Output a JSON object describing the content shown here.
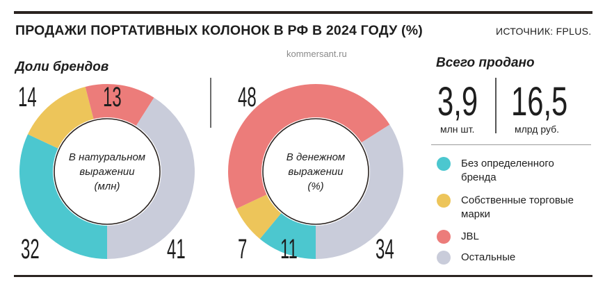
{
  "header": {
    "title": "ПРОДАЖИ ПОРТАТИВНЫХ КОЛОНОК В РФ В 2024 ГОДУ (%)",
    "source": "ИСТОЧНИК: FPLUS."
  },
  "watermark": "kommersant.ru",
  "subtitle": "Доли брендов",
  "totals": {
    "title": "Всего продано",
    "units_value": "3,9",
    "units_label": "млн шт.",
    "revenue_value": "16,5",
    "revenue_label": "млрд руб."
  },
  "colors": {
    "no_brand": "#4cc7cf",
    "own_brands": "#edc55a",
    "jbl": "#ec7c7a",
    "others": "#c9ccda"
  },
  "chart_data": [
    {
      "type": "pie",
      "center_label": "В натуральном выражении (млн)",
      "slices": [
        {
          "name": "Без определенного бренда",
          "value": 32
        },
        {
          "name": "Собственные торговые марки",
          "value": 14
        },
        {
          "name": "JBL",
          "value": 13
        },
        {
          "name": "Остальные",
          "value": 41
        }
      ]
    },
    {
      "type": "pie",
      "center_label": "В денежном выражении (%)",
      "slices": [
        {
          "name": "Без определенного бренда",
          "value": 11
        },
        {
          "name": "Собственные торговые марки",
          "value": 7
        },
        {
          "name": "JBL",
          "value": 48
        },
        {
          "name": "Остальные",
          "value": 34
        }
      ]
    }
  ],
  "legend": [
    {
      "label": "Без определенного бренда",
      "color": "#4cc7cf"
    },
    {
      "label": "Собственные торговые марки",
      "color": "#edc55a"
    },
    {
      "label": "JBL",
      "color": "#ec7c7a"
    },
    {
      "label": "Остальные",
      "color": "#c9ccda"
    }
  ]
}
